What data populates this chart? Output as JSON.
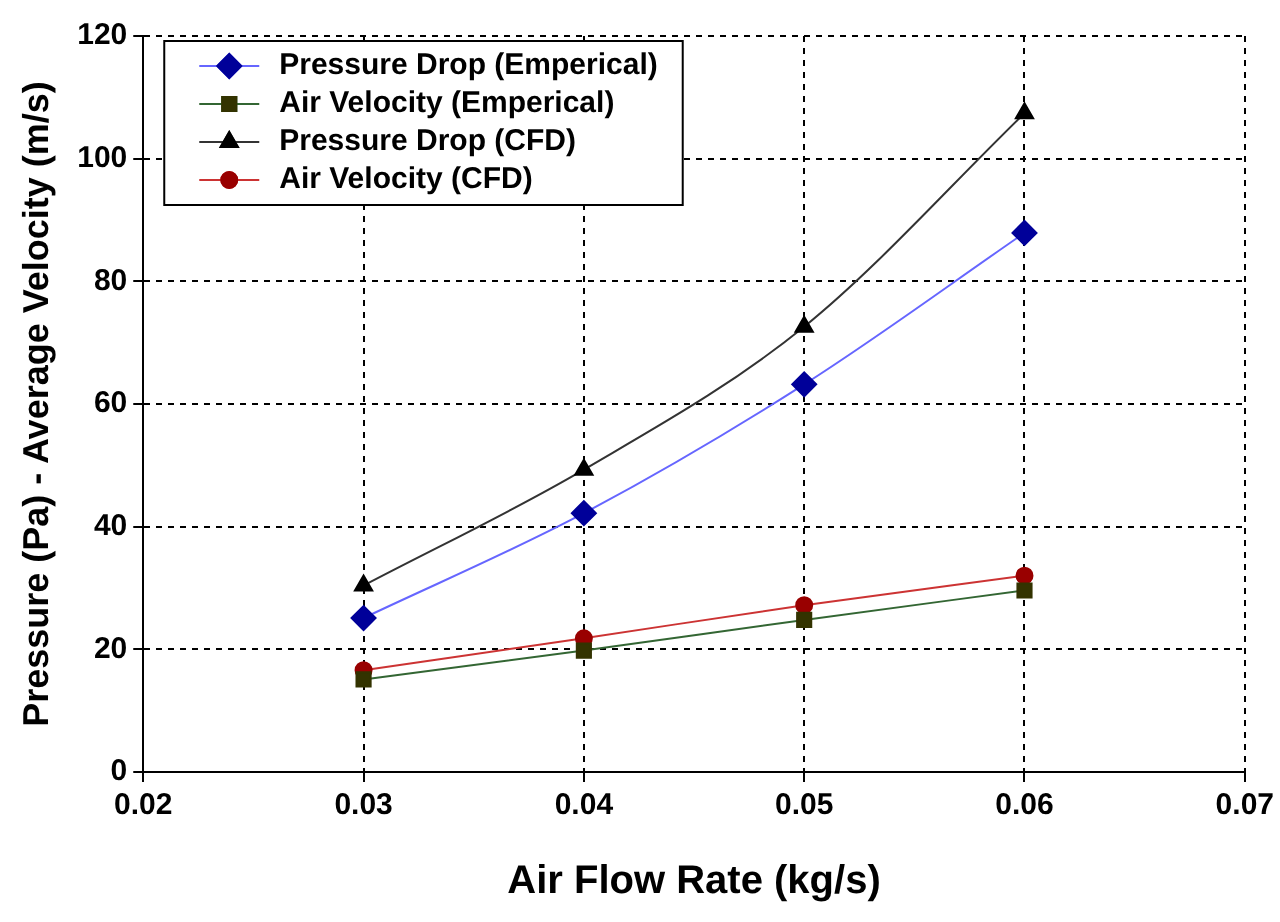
{
  "chart_data": {
    "type": "line",
    "xlabel": "Air Flow Rate (kg/s)",
    "ylabel": "Pressure (Pa) - Average Velocity (m/s)",
    "x": [
      0.03,
      0.04,
      0.05,
      0.06
    ],
    "xlim": [
      0.02,
      0.07
    ],
    "xticks": [
      0.02,
      0.03,
      0.04,
      0.05,
      0.06,
      0.07
    ],
    "ylim": [
      0,
      120
    ],
    "yticks": [
      0,
      20,
      40,
      60,
      80,
      100,
      120
    ],
    "grid": true,
    "legend": "top left",
    "line_style": "solid",
    "series": [
      {
        "name": "Pressure Drop (Emperical)",
        "color": "#000099",
        "marker": "diamond",
        "values": [
          25.1,
          42.2,
          63.2,
          87.9
        ]
      },
      {
        "name": "Air Velocity (Emperical)",
        "color": "#333300",
        "marker": "square",
        "values": [
          15.1,
          19.8,
          24.8,
          29.6
        ]
      },
      {
        "name": "Pressure Drop (CFD)",
        "color": "#000000",
        "marker": "triangle",
        "values": [
          30.4,
          49.3,
          72.6,
          107.4
        ]
      },
      {
        "name": "Air Velocity (CFD)",
        "color": "#990000",
        "marker": "circle",
        "values": [
          16.6,
          21.8,
          27.2,
          32.0
        ]
      }
    ]
  }
}
